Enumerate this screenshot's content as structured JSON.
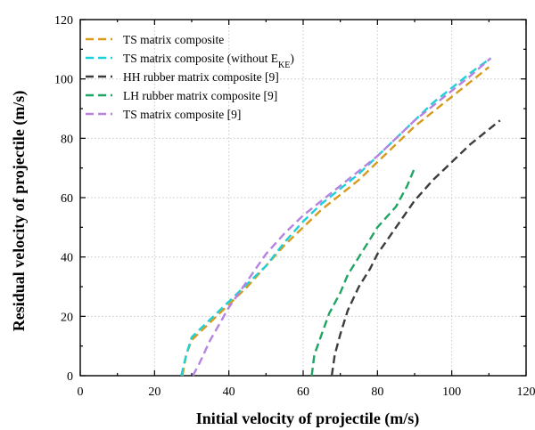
{
  "chart_data": {
    "type": "line",
    "xlabel": "Initial velocity of projectile (m/s)",
    "ylabel": "Residual velocity of projectile (m/s)",
    "xlim": [
      0,
      120
    ],
    "ylim": [
      0,
      120
    ],
    "xticks": [
      "0",
      "20",
      "40",
      "60",
      "80",
      "100",
      "120"
    ],
    "yticks": [
      "0",
      "20",
      "40",
      "60",
      "80",
      "100",
      "120"
    ],
    "grid": true,
    "legend_position": "top-left",
    "line_style": "dashed",
    "series": [
      {
        "name": "TS matrix composite",
        "color": "#d89a1c",
        "x": [
          27.5,
          28.5,
          30,
          35,
          40,
          45,
          50,
          55,
          60,
          65,
          70,
          75,
          80,
          85,
          90,
          95,
          100,
          105,
          110
        ],
        "y": [
          0,
          7,
          12,
          18,
          24,
          30,
          37,
          44,
          50,
          56,
          61,
          66,
          72,
          78,
          84,
          89,
          94,
          99,
          104
        ]
      },
      {
        "name": "TS matrix composite (without E",
        "name_sub": "KE",
        "name_suffix": ")",
        "color": "#1ed0d8",
        "x": [
          27.2,
          28.5,
          30,
          35,
          40,
          45,
          50,
          55,
          60,
          65,
          70,
          75,
          80,
          85,
          90,
          95,
          100,
          105,
          110.5
        ],
        "y": [
          0,
          7,
          13,
          19,
          25,
          31,
          37,
          45,
          52,
          58,
          63,
          68,
          74,
          80,
          86,
          92,
          97,
          102,
          107
        ]
      },
      {
        "name": "HH rubber matrix composite [9]",
        "color": "#3c3c3c",
        "x": [
          67.7,
          68.5,
          70,
          72,
          75,
          78,
          80,
          85,
          90,
          95,
          100,
          105,
          110,
          113
        ],
        "y": [
          0,
          7,
          14,
          22,
          30,
          36,
          41,
          50,
          59,
          66,
          72,
          78,
          83,
          86
        ]
      },
      {
        "name": "LH rubber matrix composite [9]",
        "color": "#1fa463",
        "x": [
          62.3,
          63,
          65,
          67,
          70,
          72,
          75,
          78,
          80,
          85,
          88,
          90
        ],
        "y": [
          0,
          7,
          14,
          21,
          28,
          34,
          40,
          46,
          50,
          57,
          64,
          70
        ]
      },
      {
        "name": "TS matrix composite [9]",
        "color": "#b683e0",
        "x": [
          30.3,
          32,
          35,
          40,
          45,
          50,
          55,
          60,
          65,
          70,
          75,
          80,
          85,
          90,
          95,
          100,
          105,
          110.5
        ],
        "y": [
          0,
          4,
          12,
          23,
          32,
          41,
          48,
          54,
          59,
          64,
          69,
          74,
          80,
          86,
          91,
          96,
          101,
          107
        ]
      }
    ]
  }
}
